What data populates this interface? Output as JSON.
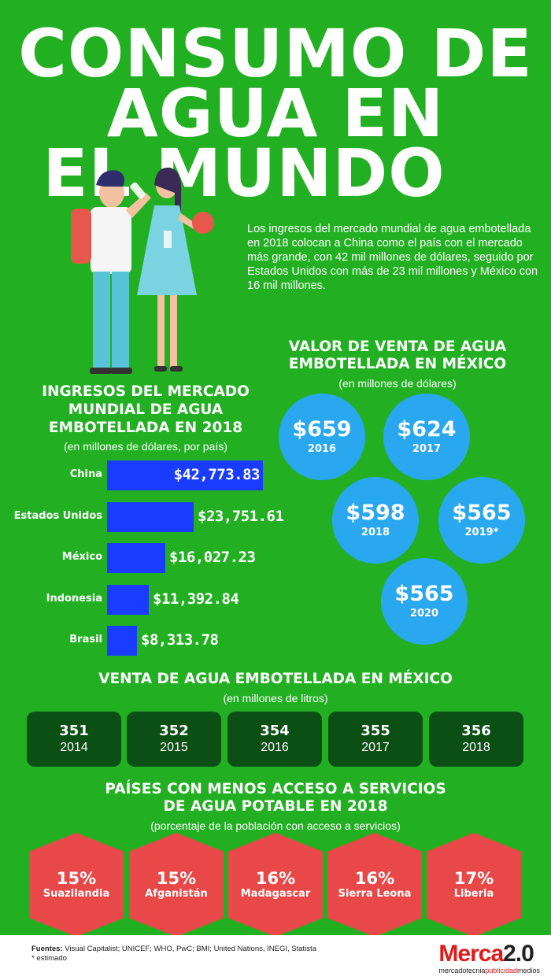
{
  "title": {
    "line1": "CONSUMO DE",
    "line2": "AGUA EN",
    "line3": "EL MUNDO"
  },
  "intro": "Los ingresos del mercado mundial de agua embotellada en 2018 colocan a China como el país con el mercado más grande, con 42 mil millones de dólares, seguido por Estados Unidos con más de 23 mil millones y México con 16 mil millones.",
  "sales_mexico": {
    "title_1": "VALOR DE VENTA DE AGUA",
    "title_2": "EMBOTELLADA EN MÉXICO",
    "subtitle": "(en millones de dólares)",
    "items": [
      {
        "amount": "$659",
        "year": "2016"
      },
      {
        "amount": "$624",
        "year": "2017"
      },
      {
        "amount": "$598",
        "year": "2018"
      },
      {
        "amount": "$565",
        "year": "2019*"
      },
      {
        "amount": "$565",
        "year": "2020"
      }
    ]
  },
  "chart_data": {
    "type": "bar",
    "title": "INGRESOS DEL MERCADO MUNDIAL DE AGUA EMBOTELLADA EN 2018",
    "subtitle": "(en millones de dólares, por país)",
    "categories": [
      "China",
      "Estados Unidos",
      "México",
      "Indonesia",
      "Brasil"
    ],
    "values": [
      42773.83,
      23751.61,
      16027.23,
      11392.84,
      8313.78
    ],
    "value_labels": [
      "$42,773.83",
      "$23,751.61",
      "$16,027.23",
      "$11,392.84",
      "$8,313.78"
    ],
    "orientation": "horizontal",
    "bar_color": "#1a3cff",
    "title_lines": [
      "INGRESOS DEL MERCADO",
      "MUNDIAL DE AGUA",
      "EMBOTELLADA EN 2018"
    ]
  },
  "liters": {
    "title": "VENTA DE AGUA EMBOTELLADA EN MÉXICO",
    "subtitle": "(en millones de litros)",
    "items": [
      {
        "value": "351",
        "year": "2014"
      },
      {
        "value": "352",
        "year": "2015"
      },
      {
        "value": "354",
        "year": "2016"
      },
      {
        "value": "355",
        "year": "2017"
      },
      {
        "value": "356",
        "year": "2018"
      }
    ]
  },
  "access": {
    "title_1": "PAÍSES CON MENOS ACCESO A SERVICIOS",
    "title_2": "DE AGUA POTABLE EN 2018",
    "subtitle": "(porcentaje de la población con acceso a servicios)",
    "items": [
      {
        "pct": "15%",
        "country": "Suazilandia"
      },
      {
        "pct": "15%",
        "country": "Afganistán"
      },
      {
        "pct": "16%",
        "country": "Madagascar"
      },
      {
        "pct": "16%",
        "country": "Sierra Leona"
      },
      {
        "pct": "17%",
        "country": "Liberia"
      }
    ]
  },
  "footer": {
    "sources_label": "Fuentes:",
    "sources": "Visual Capitalist; UNICEF; WHO, PwC; BMI; United Nations, INEGI, Statista",
    "note": "* estimado",
    "logo_brand": "Merca",
    "logo_version": "2.0",
    "logo_tag_1": "mercadotecnia",
    "logo_tag_2": "publicidad",
    "logo_tag_3": "medios"
  },
  "colors": {
    "background": "#22b022",
    "bar": "#1a3cff",
    "circle": "#29a8f0",
    "liter_box": "#0c4f14",
    "hexagon": "#e94848",
    "logo_red": "#e11a1a"
  }
}
